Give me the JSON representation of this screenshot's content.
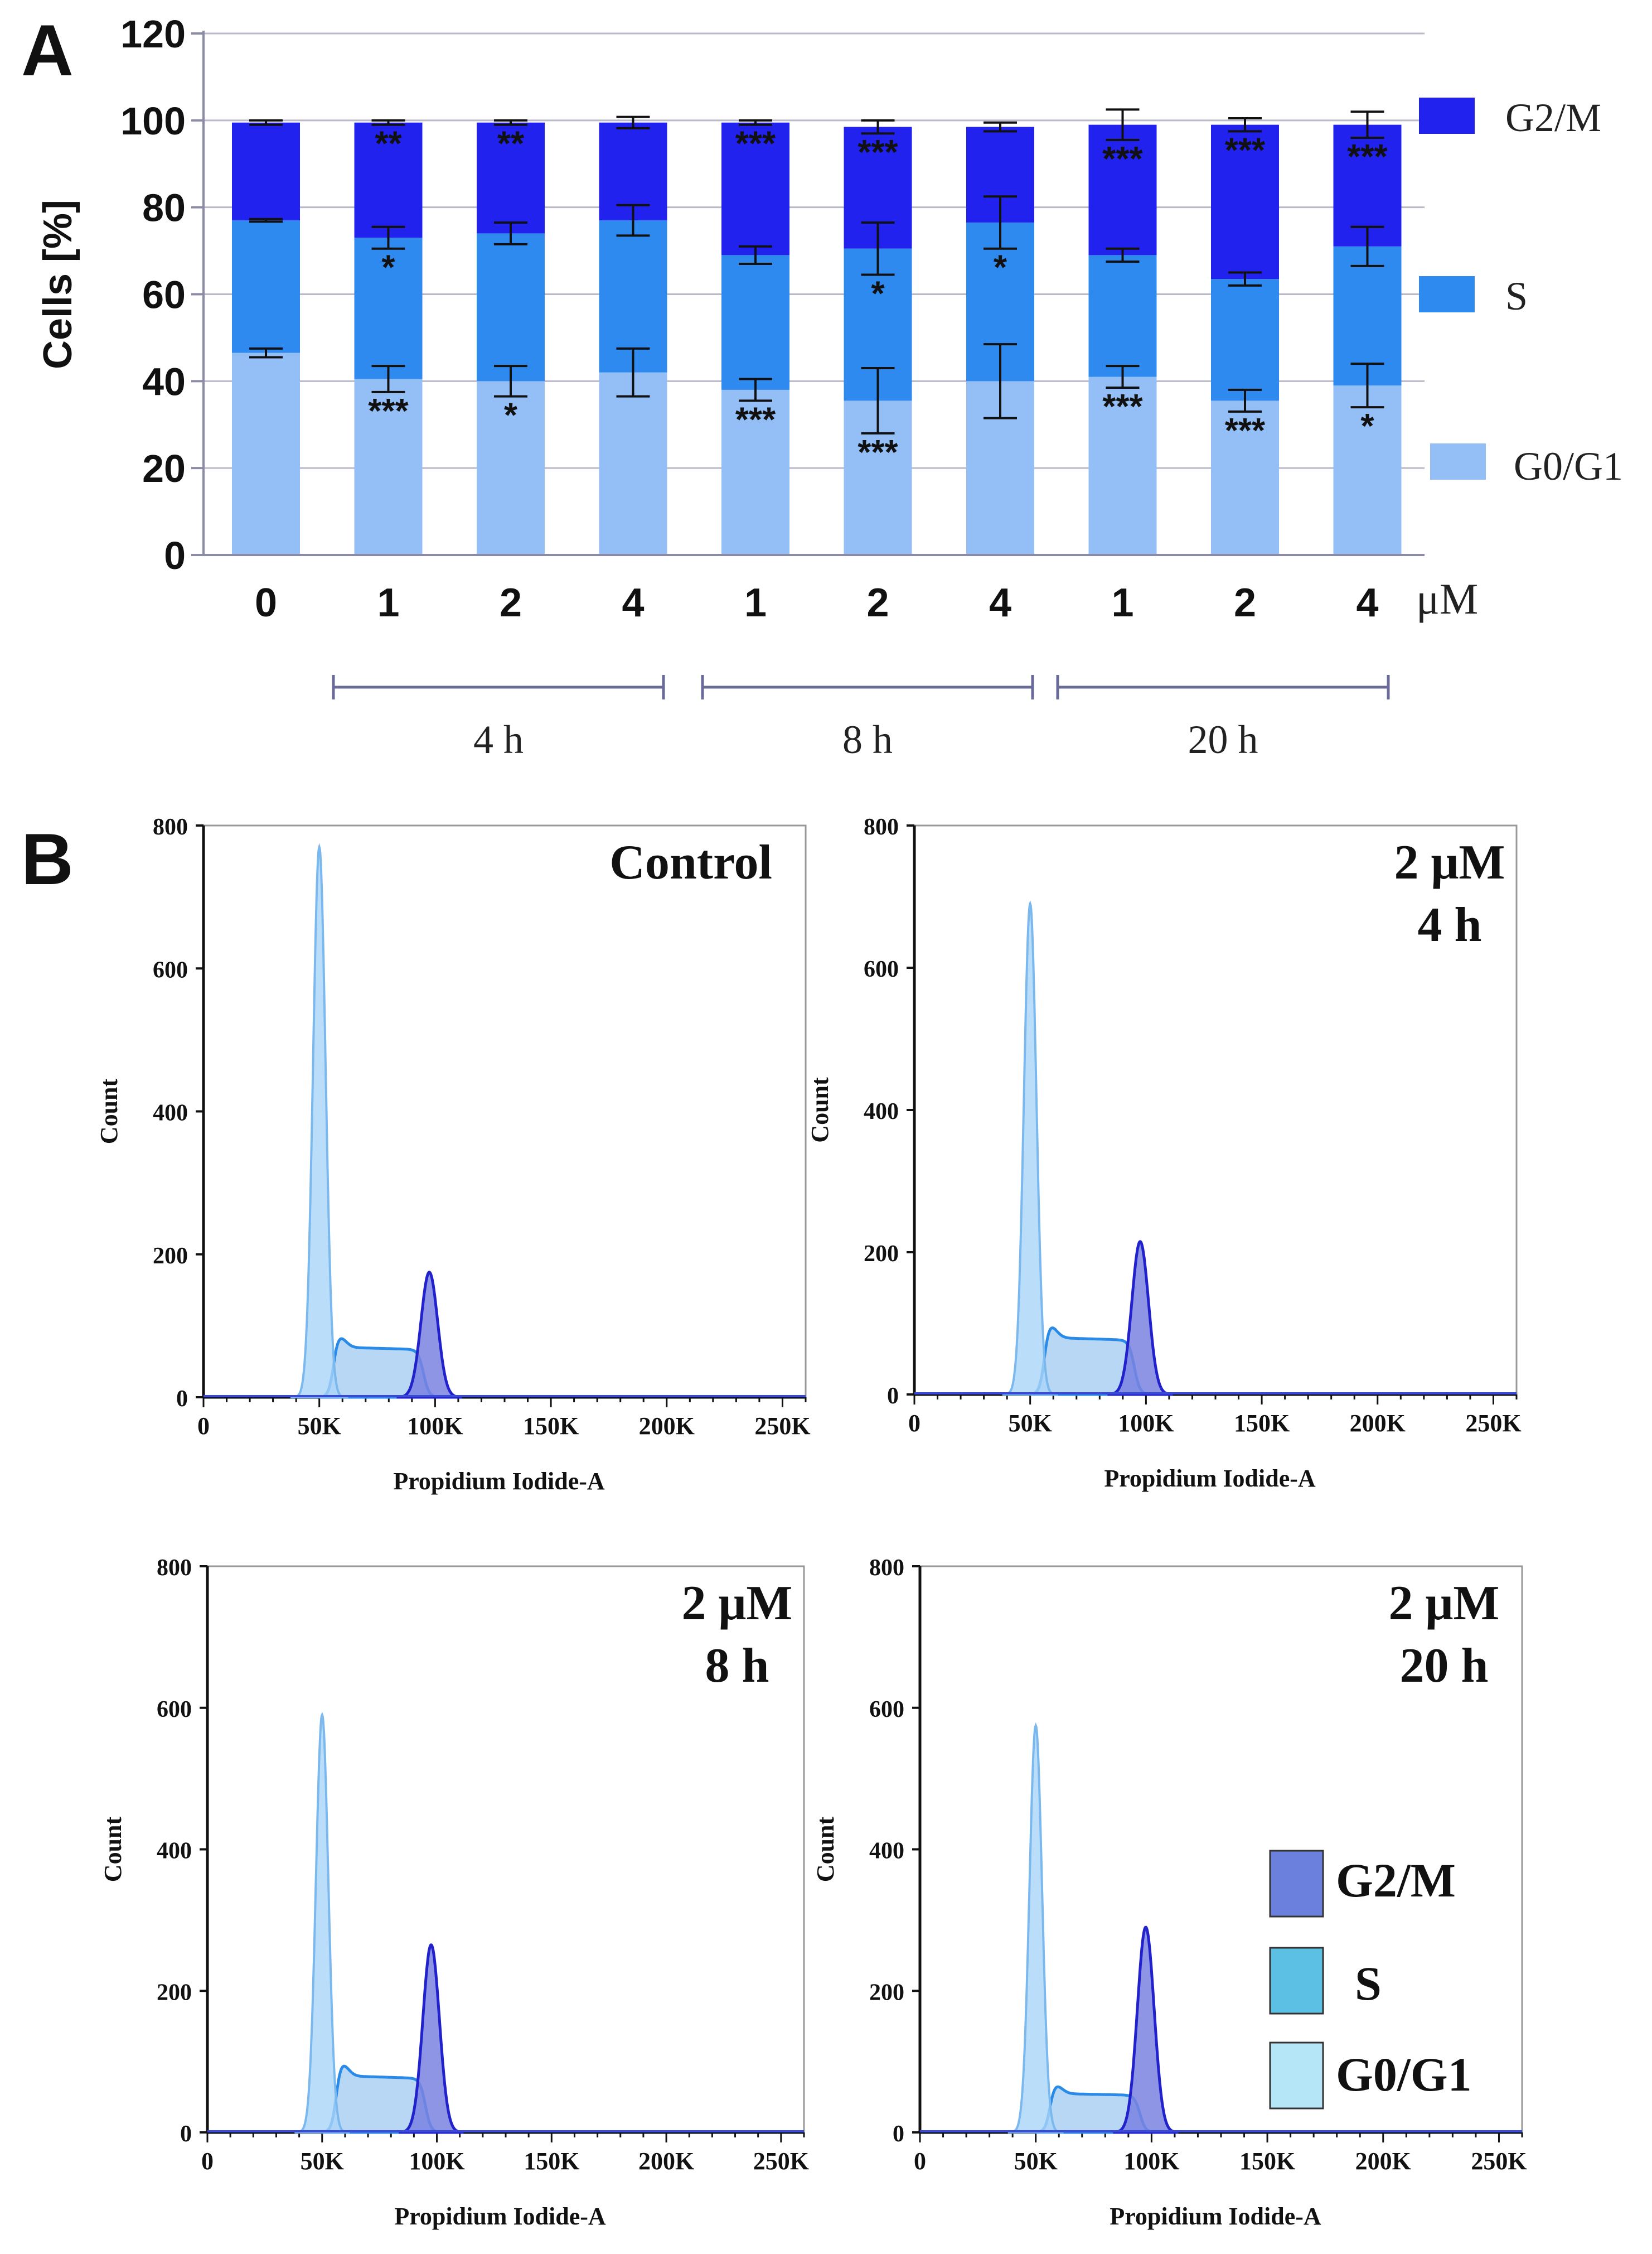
{
  "panel_a": {
    "label": "A",
    "ylabel": "Cells [%]",
    "unit_label": "μM",
    "groups": [
      {
        "label": "4 h"
      },
      {
        "label": "8 h"
      },
      {
        "label": "20 h"
      }
    ],
    "legend": [
      {
        "name": "G2/M",
        "color": "#2222ee"
      },
      {
        "name": "S",
        "color": "#2f8af0"
      },
      {
        "name": "G0/G1",
        "color": "#93bff6"
      }
    ]
  },
  "panel_b": {
    "label": "B",
    "legend": [
      {
        "name": "G2/M",
        "color": "#6b7fdc"
      },
      {
        "name": "S",
        "color": "#5bc0e3"
      },
      {
        "name": "G0/G1",
        "color": "#b5e6f7"
      }
    ]
  },
  "chart_data": [
    {
      "type": "bar",
      "stacked": true,
      "title": "",
      "ylabel": "Cells [%]",
      "xlabel": "μM",
      "ylim": [
        0,
        120
      ],
      "yticks": [
        0,
        20,
        40,
        60,
        80,
        100,
        120
      ],
      "categories": [
        "0",
        "1",
        "2",
        "4",
        "1",
        "2",
        "4",
        "1",
        "2",
        "4"
      ],
      "series": [
        {
          "name": "G0/G1",
          "color": "#93bff6",
          "values": [
            46.5,
            40.5,
            40,
            42,
            38,
            35.5,
            40,
            41,
            35.5,
            39
          ],
          "errors": [
            1,
            3,
            3.5,
            5.5,
            2.5,
            7.5,
            8.5,
            2.5,
            2.5,
            5
          ],
          "stars": [
            "",
            "***",
            "*",
            "",
            "***",
            "***",
            "",
            "***",
            "***",
            "*"
          ]
        },
        {
          "name": "S",
          "color": "#2f8af0",
          "values": [
            30.5,
            32.5,
            34,
            35,
            31,
            35,
            36.5,
            28,
            28,
            32
          ],
          "errors": [
            0.3,
            2.5,
            2.5,
            3.5,
            2,
            6,
            6,
            1.5,
            1.5,
            4.5
          ],
          "stars": [
            "",
            "*",
            "",
            "",
            "",
            "*",
            "*",
            "",
            "",
            ""
          ]
        },
        {
          "name": "G2/M",
          "color": "#2222ee",
          "values": [
            22.5,
            26.5,
            25.5,
            22.5,
            30.5,
            28,
            22,
            30,
            35.5,
            28
          ],
          "errors": [
            0.5,
            0.5,
            0.5,
            1.3,
            0.5,
            1.5,
            1,
            3.5,
            1.5,
            3
          ],
          "stars": [
            "",
            "**",
            "**",
            "",
            "***",
            "***",
            "",
            "***",
            "***",
            "***"
          ]
        }
      ],
      "group_labels": [
        "4 h",
        "8 h",
        "20 h"
      ]
    },
    {
      "type": "area",
      "title": "Control",
      "title_lines": [
        "Control"
      ],
      "xlabel": "Propidium Iodide-A",
      "ylabel": "Count",
      "xlim": [
        0,
        260000
      ],
      "ylim": [
        0,
        800
      ],
      "xtick_labels": [
        "0",
        "50K",
        "100K",
        "150K",
        "200K",
        "250K"
      ],
      "ytick_labels": [
        "0",
        "200",
        "400",
        "600",
        "800"
      ],
      "peaks": {
        "g0g1_count": 770,
        "s_plateau": 70,
        "g2m_count": 175
      }
    },
    {
      "type": "area",
      "title": "2 μM 4 h",
      "title_lines": [
        "2 μM",
        "4 h"
      ],
      "xlabel": "Propidium Iodide-A",
      "ylabel": "Count",
      "xlim": [
        0,
        260000
      ],
      "ylim": [
        0,
        800
      ],
      "xtick_labels": [
        "0",
        "50K",
        "100K",
        "150K",
        "200K",
        "250K"
      ],
      "ytick_labels": [
        "0",
        "200",
        "400",
        "600",
        "800"
      ],
      "peaks": {
        "g0g1_count": 690,
        "s_plateau": 80,
        "g2m_count": 215
      }
    },
    {
      "type": "area",
      "title": "2 μM 8 h",
      "title_lines": [
        "2 μM",
        "8 h"
      ],
      "xlabel": "Propidium Iodide-A",
      "ylabel": "Count",
      "xlim": [
        0,
        260000
      ],
      "ylim": [
        0,
        800
      ],
      "xtick_labels": [
        "0",
        "50K",
        "100K",
        "150K",
        "200K",
        "250K"
      ],
      "ytick_labels": [
        "0",
        "200",
        "400",
        "600",
        "800"
      ],
      "peaks": {
        "g0g1_count": 590,
        "s_plateau": 80,
        "g2m_count": 265
      }
    },
    {
      "type": "area",
      "title": "2 μM 20 h",
      "title_lines": [
        "2 μM",
        "20 h"
      ],
      "xlabel": "Propidium Iodide-A",
      "ylabel": "Count",
      "xlim": [
        0,
        260000
      ],
      "ylim": [
        0,
        800
      ],
      "xtick_labels": [
        "0",
        "50K",
        "100K",
        "150K",
        "200K",
        "250K"
      ],
      "ytick_labels": [
        "0",
        "200",
        "400",
        "600",
        "800"
      ],
      "peaks": {
        "g0g1_count": 575,
        "s_plateau": 55,
        "g2m_count": 290
      }
    }
  ]
}
